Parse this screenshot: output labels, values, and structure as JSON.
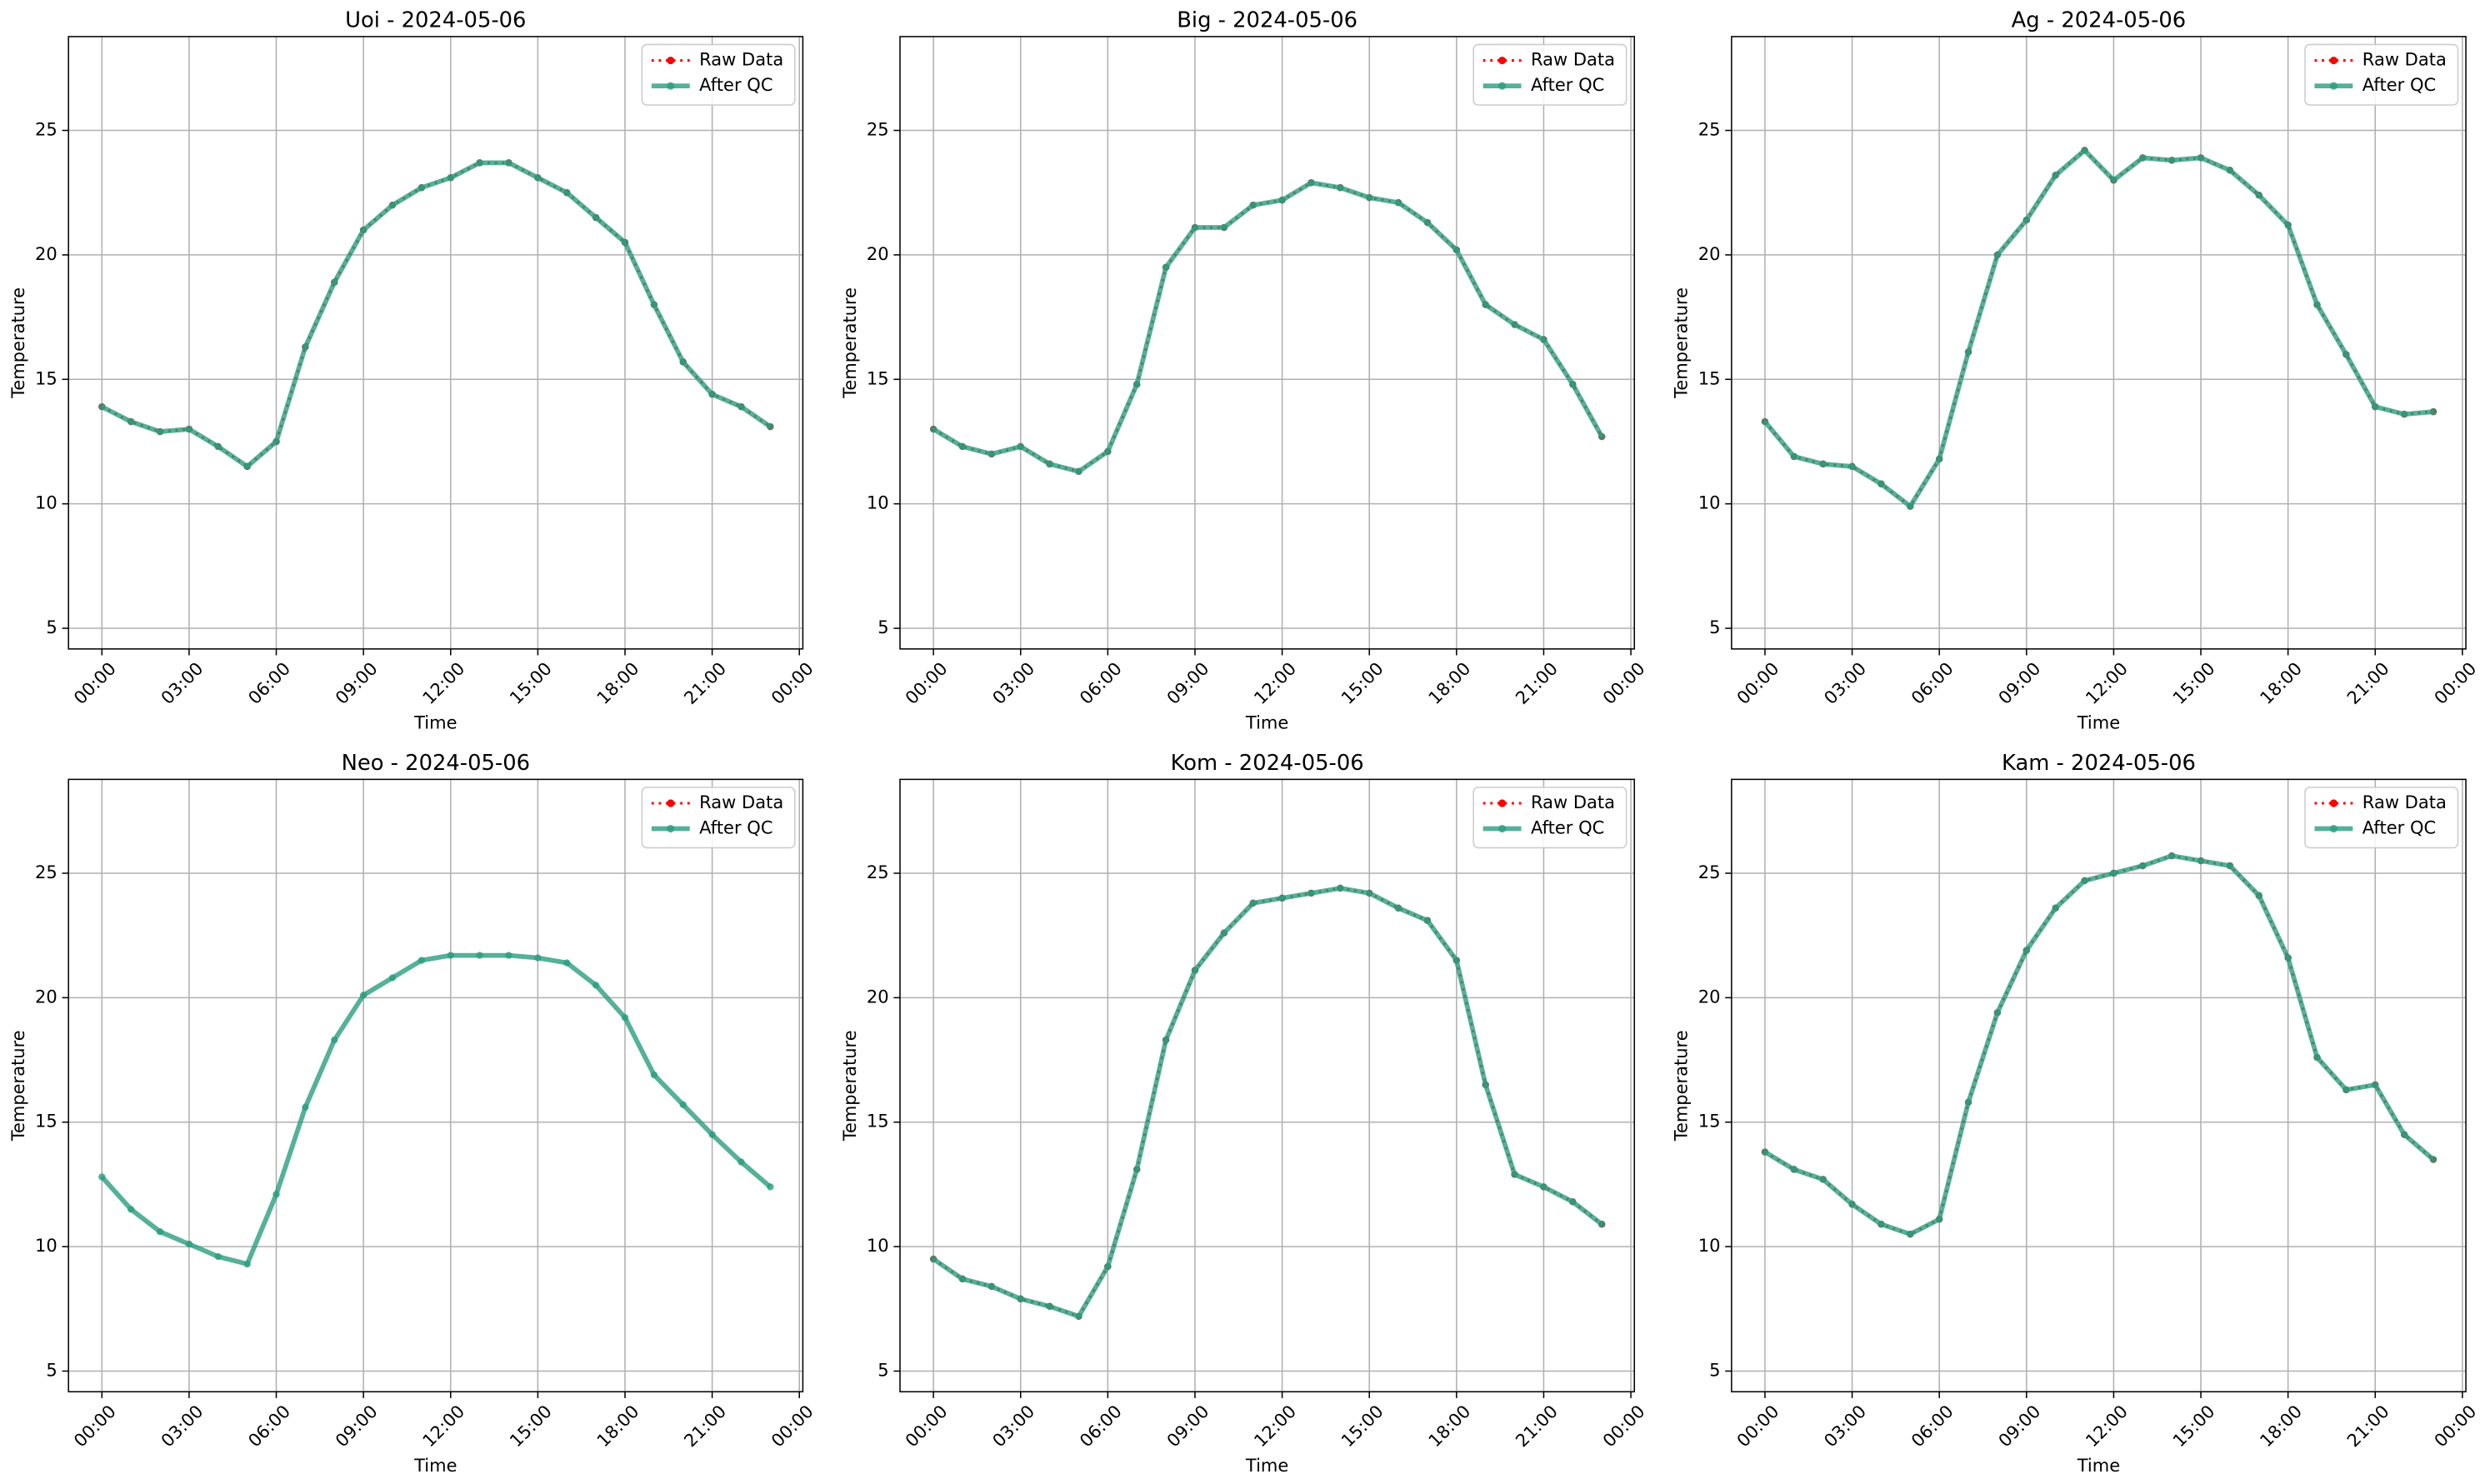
{
  "chart_data": [
    {
      "type": "line",
      "title": "Uoi - 2024-05-06",
      "xlabel": "Time",
      "ylabel": "Temperature",
      "x": [
        0,
        1,
        2,
        3,
        4,
        5,
        6,
        7,
        8,
        9,
        10,
        11,
        12,
        13,
        14,
        15,
        16,
        17,
        18,
        19,
        20,
        21,
        22,
        23
      ],
      "xlim": [
        -1.15,
        24.12
      ],
      "xticks": [
        {
          "value": 0,
          "label": "00:00"
        },
        {
          "value": 3,
          "label": "03:00"
        },
        {
          "value": 6,
          "label": "06:00"
        },
        {
          "value": 9,
          "label": "09:00"
        },
        {
          "value": 12,
          "label": "12:00"
        },
        {
          "value": 15,
          "label": "15:00"
        },
        {
          "value": 18,
          "label": "18:00"
        },
        {
          "value": 21,
          "label": "21:00"
        },
        {
          "value": 24,
          "label": "00:00"
        }
      ],
      "ylim": [
        4.17,
        28.77
      ],
      "yticks": [
        5,
        10,
        15,
        20,
        25
      ],
      "grid": true,
      "legend": "upper right",
      "series": [
        {
          "name": "Raw Data",
          "color": "#ff0000",
          "values": [
            13.9,
            13.3,
            12.9,
            13.0,
            12.3,
            11.5,
            12.5,
            16.3,
            18.9,
            21.0,
            22.0,
            22.7,
            23.1,
            23.7,
            23.7,
            23.1,
            22.5,
            21.5,
            20.5,
            18.0,
            15.7,
            14.4,
            13.9,
            13.1
          ]
        },
        {
          "name": "After QC",
          "color": "#2a9d7f",
          "values": [
            13.9,
            13.3,
            12.9,
            13.0,
            12.3,
            11.5,
            12.5,
            16.3,
            18.9,
            21.0,
            22.0,
            22.7,
            23.1,
            23.7,
            23.7,
            23.1,
            22.5,
            21.5,
            20.5,
            18.0,
            15.7,
            14.4,
            13.9,
            13.1
          ]
        }
      ]
    },
    {
      "type": "line",
      "title": "Big - 2024-05-06",
      "xlabel": "Time",
      "ylabel": "Temperature",
      "x": [
        0,
        1,
        2,
        3,
        4,
        5,
        6,
        7,
        8,
        9,
        10,
        11,
        12,
        13,
        14,
        15,
        16,
        17,
        18,
        19,
        20,
        21,
        22,
        23
      ],
      "xlim": [
        -1.15,
        24.12
      ],
      "xticks": [
        {
          "value": 0,
          "label": "00:00"
        },
        {
          "value": 3,
          "label": "03:00"
        },
        {
          "value": 6,
          "label": "06:00"
        },
        {
          "value": 9,
          "label": "09:00"
        },
        {
          "value": 12,
          "label": "12:00"
        },
        {
          "value": 15,
          "label": "15:00"
        },
        {
          "value": 18,
          "label": "18:00"
        },
        {
          "value": 21,
          "label": "21:00"
        },
        {
          "value": 24,
          "label": "00:00"
        }
      ],
      "ylim": [
        4.17,
        28.77
      ],
      "yticks": [
        5,
        10,
        15,
        20,
        25
      ],
      "grid": true,
      "legend": "upper right",
      "series": [
        {
          "name": "Raw Data",
          "color": "#ff0000",
          "values": [
            13.0,
            12.3,
            12.0,
            12.3,
            11.6,
            11.3,
            12.1,
            14.8,
            19.5,
            21.1,
            21.1,
            22.0,
            22.2,
            22.9,
            22.7,
            22.3,
            22.1,
            21.3,
            20.2,
            18.0,
            17.2,
            16.6,
            14.8,
            12.7
          ]
        },
        {
          "name": "After QC",
          "color": "#2a9d7f",
          "values": [
            13.0,
            12.3,
            12.0,
            12.3,
            11.6,
            11.3,
            12.1,
            14.8,
            19.5,
            21.1,
            21.1,
            22.0,
            22.2,
            22.9,
            22.7,
            22.3,
            22.1,
            21.3,
            20.2,
            18.0,
            17.2,
            16.6,
            14.8,
            12.7
          ]
        }
      ]
    },
    {
      "type": "line",
      "title": "Ag - 2024-05-06",
      "xlabel": "Time",
      "ylabel": "Temperature",
      "x": [
        0,
        1,
        2,
        3,
        4,
        5,
        6,
        7,
        8,
        9,
        10,
        11,
        12,
        13,
        14,
        15,
        16,
        17,
        18,
        19,
        20,
        21,
        22,
        23
      ],
      "xlim": [
        -1.15,
        24.12
      ],
      "xticks": [
        {
          "value": 0,
          "label": "00:00"
        },
        {
          "value": 3,
          "label": "03:00"
        },
        {
          "value": 6,
          "label": "06:00"
        },
        {
          "value": 9,
          "label": "09:00"
        },
        {
          "value": 12,
          "label": "12:00"
        },
        {
          "value": 15,
          "label": "15:00"
        },
        {
          "value": 18,
          "label": "18:00"
        },
        {
          "value": 21,
          "label": "21:00"
        },
        {
          "value": 24,
          "label": "00:00"
        }
      ],
      "ylim": [
        4.17,
        28.77
      ],
      "yticks": [
        5,
        10,
        15,
        20,
        25
      ],
      "grid": true,
      "legend": "upper right",
      "series": [
        {
          "name": "Raw Data",
          "color": "#ff0000",
          "values": [
            13.3,
            11.9,
            11.6,
            11.5,
            10.8,
            9.9,
            11.8,
            16.1,
            20.0,
            21.4,
            23.2,
            24.2,
            23.0,
            23.9,
            23.8,
            23.9,
            23.4,
            22.4,
            21.2,
            18.0,
            16.0,
            13.9,
            13.6,
            13.7
          ]
        },
        {
          "name": "After QC",
          "color": "#2a9d7f",
          "values": [
            13.3,
            11.9,
            11.6,
            11.5,
            10.8,
            9.9,
            11.8,
            16.1,
            20.0,
            21.4,
            23.2,
            24.2,
            23.0,
            23.9,
            23.8,
            23.9,
            23.4,
            22.4,
            21.2,
            18.0,
            16.0,
            13.9,
            13.6,
            13.7
          ]
        }
      ]
    },
    {
      "type": "line",
      "title": "Neo - 2024-05-06",
      "xlabel": "Time",
      "ylabel": "Temperature",
      "x": [
        0,
        1,
        2,
        3,
        4,
        5,
        6,
        7,
        8,
        9,
        10,
        11,
        12,
        13,
        14,
        15,
        16,
        17,
        18,
        19,
        20,
        21,
        22,
        23
      ],
      "xlim": [
        -1.15,
        24.12
      ],
      "xticks": [
        {
          "value": 0,
          "label": "00:00"
        },
        {
          "value": 3,
          "label": "03:00"
        },
        {
          "value": 6,
          "label": "06:00"
        },
        {
          "value": 9,
          "label": "09:00"
        },
        {
          "value": 12,
          "label": "12:00"
        },
        {
          "value": 15,
          "label": "15:00"
        },
        {
          "value": 18,
          "label": "18:00"
        },
        {
          "value": 21,
          "label": "21:00"
        },
        {
          "value": 24,
          "label": "00:00"
        }
      ],
      "ylim": [
        4.17,
        28.77
      ],
      "yticks": [
        5,
        10,
        15,
        20,
        25
      ],
      "grid": true,
      "legend": "upper right",
      "series": [
        {
          "name": "Raw Data",
          "color": "#ff0000",
          "values": [
            null,
            null,
            null,
            null,
            null,
            null,
            null,
            null,
            null,
            null,
            null,
            null,
            null,
            null,
            null,
            null,
            null,
            null,
            null,
            null,
            null,
            null,
            null,
            null
          ]
        },
        {
          "name": "After QC",
          "color": "#2a9d7f",
          "values": [
            12.8,
            11.5,
            10.6,
            10.1,
            9.6,
            9.3,
            12.1,
            15.6,
            18.3,
            20.1,
            20.8,
            21.5,
            21.7,
            21.7,
            21.7,
            21.6,
            21.4,
            20.5,
            19.2,
            16.9,
            15.7,
            14.5,
            13.4,
            12.4
          ]
        }
      ]
    },
    {
      "type": "line",
      "title": "Kom - 2024-05-06",
      "xlabel": "Time",
      "ylabel": "Temperature",
      "x": [
        0,
        1,
        2,
        3,
        4,
        5,
        6,
        7,
        8,
        9,
        10,
        11,
        12,
        13,
        14,
        15,
        16,
        17,
        18,
        19,
        20,
        21,
        22,
        23
      ],
      "xlim": [
        -1.15,
        24.12
      ],
      "xticks": [
        {
          "value": 0,
          "label": "00:00"
        },
        {
          "value": 3,
          "label": "03:00"
        },
        {
          "value": 6,
          "label": "06:00"
        },
        {
          "value": 9,
          "label": "09:00"
        },
        {
          "value": 12,
          "label": "12:00"
        },
        {
          "value": 15,
          "label": "15:00"
        },
        {
          "value": 18,
          "label": "18:00"
        },
        {
          "value": 21,
          "label": "21:00"
        },
        {
          "value": 24,
          "label": "00:00"
        }
      ],
      "ylim": [
        4.17,
        28.77
      ],
      "yticks": [
        5,
        10,
        15,
        20,
        25
      ],
      "grid": true,
      "legend": "upper right",
      "series": [
        {
          "name": "Raw Data",
          "color": "#ff0000",
          "values": [
            9.5,
            8.7,
            8.4,
            7.9,
            7.6,
            7.2,
            9.2,
            13.1,
            18.3,
            21.1,
            22.6,
            23.8,
            24.0,
            24.2,
            24.4,
            24.2,
            23.6,
            23.1,
            21.5,
            16.5,
            12.9,
            12.4,
            11.8,
            10.9
          ]
        },
        {
          "name": "After QC",
          "color": "#2a9d7f",
          "values": [
            9.5,
            8.7,
            8.4,
            7.9,
            7.6,
            7.2,
            9.2,
            13.1,
            18.3,
            21.1,
            22.6,
            23.8,
            24.0,
            24.2,
            24.4,
            24.2,
            23.6,
            23.1,
            21.5,
            16.5,
            12.9,
            12.4,
            11.8,
            10.9
          ]
        }
      ]
    },
    {
      "type": "line",
      "title": "Kam - 2024-05-06",
      "xlabel": "Time",
      "ylabel": "Temperature",
      "x": [
        0,
        1,
        2,
        3,
        4,
        5,
        6,
        7,
        8,
        9,
        10,
        11,
        12,
        13,
        14,
        15,
        16,
        17,
        18,
        19,
        20,
        21,
        22,
        23
      ],
      "xlim": [
        -1.15,
        24.12
      ],
      "xticks": [
        {
          "value": 0,
          "label": "00:00"
        },
        {
          "value": 3,
          "label": "03:00"
        },
        {
          "value": 6,
          "label": "06:00"
        },
        {
          "value": 9,
          "label": "09:00"
        },
        {
          "value": 12,
          "label": "12:00"
        },
        {
          "value": 15,
          "label": "15:00"
        },
        {
          "value": 18,
          "label": "18:00"
        },
        {
          "value": 21,
          "label": "21:00"
        },
        {
          "value": 24,
          "label": "00:00"
        }
      ],
      "ylim": [
        4.17,
        28.77
      ],
      "yticks": [
        5,
        10,
        15,
        20,
        25
      ],
      "grid": true,
      "legend": "upper right",
      "series": [
        {
          "name": "Raw Data",
          "color": "#ff0000",
          "values": [
            13.8,
            13.1,
            12.7,
            11.7,
            10.9,
            10.5,
            11.1,
            15.8,
            19.4,
            21.9,
            23.6,
            24.7,
            25.0,
            25.3,
            25.7,
            25.5,
            25.3,
            24.1,
            21.6,
            17.6,
            16.3,
            16.5,
            14.5,
            13.5
          ]
        },
        {
          "name": "After QC",
          "color": "#2a9d7f",
          "values": [
            13.8,
            13.1,
            12.7,
            11.7,
            10.9,
            10.5,
            11.1,
            15.8,
            19.4,
            21.9,
            23.6,
            24.7,
            25.0,
            25.3,
            25.7,
            25.5,
            25.3,
            24.1,
            21.6,
            17.6,
            16.3,
            16.5,
            14.5,
            13.5
          ]
        }
      ]
    }
  ]
}
